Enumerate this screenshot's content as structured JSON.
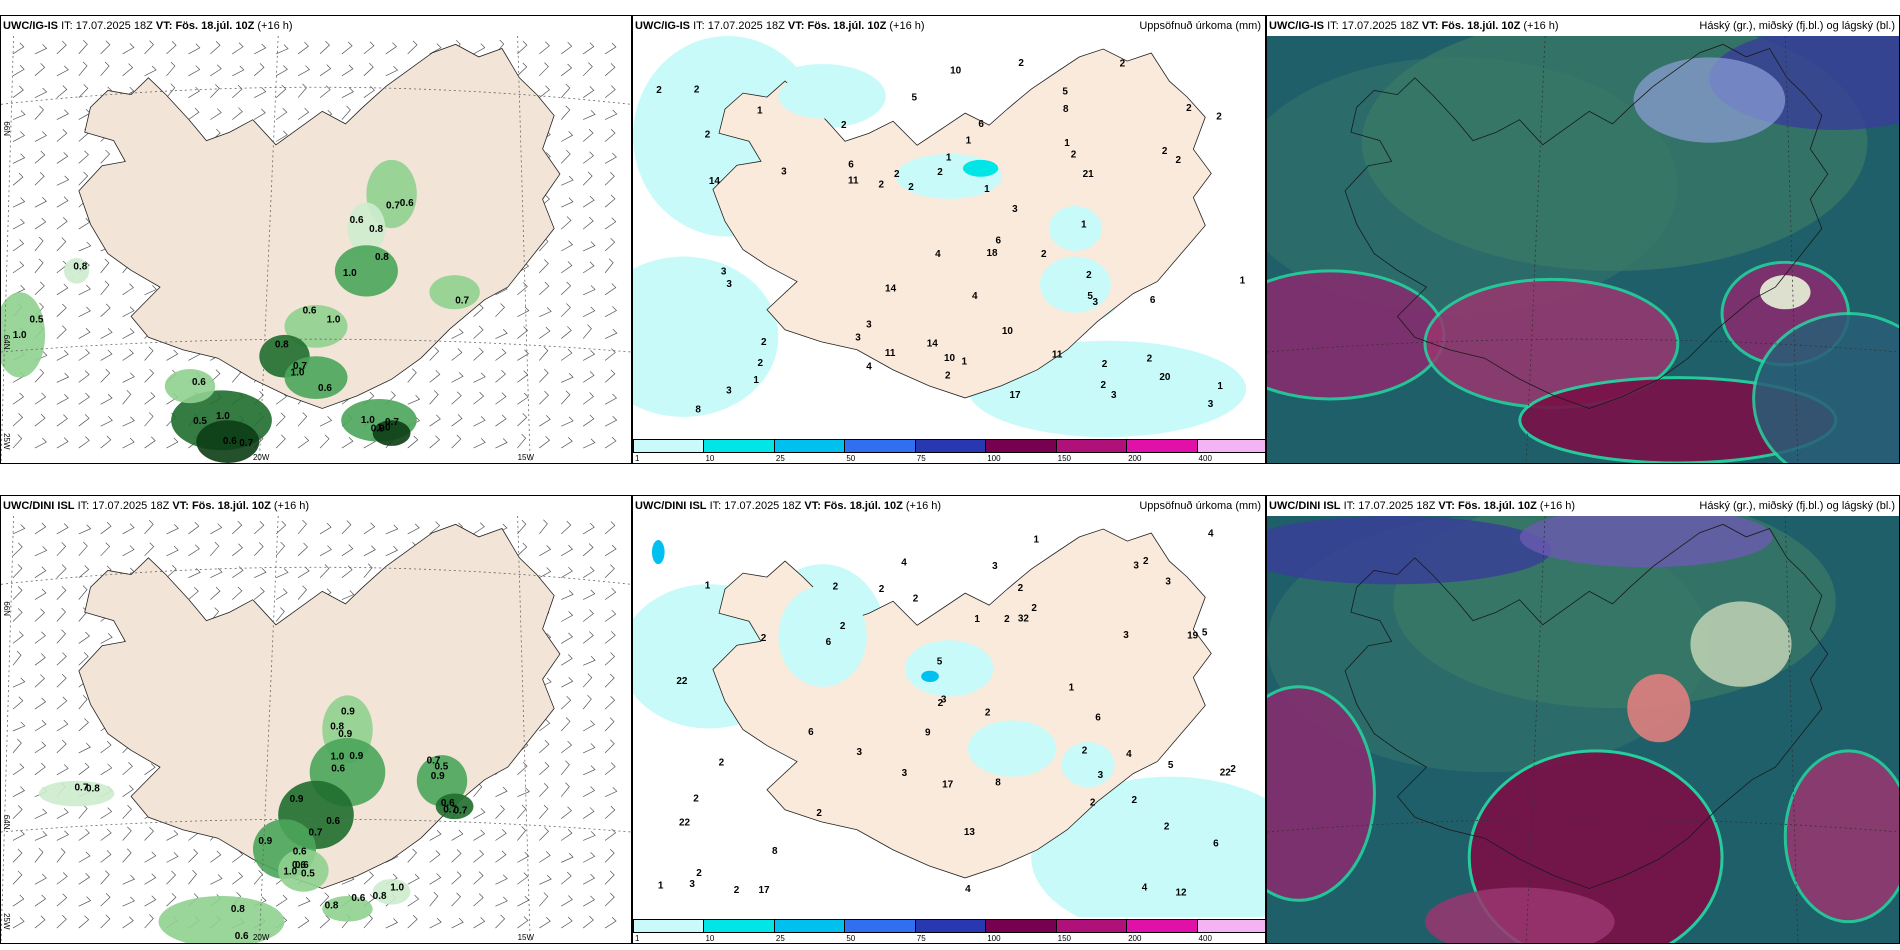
{
  "top": {
    "wind": {
      "model": "UWC/IG-IS",
      "it_label": "IT:",
      "it": "17.07.2025 18Z",
      "vt_label": "VT:",
      "vt": "Fös. 18.júl. 10Z",
      "lead": "(+16 h)"
    },
    "precip": {
      "model": "UWC/IG-IS",
      "it_label": "IT:",
      "it": "17.07.2025 18Z",
      "vt_label": "VT:",
      "vt": "Fös. 18.júl. 10Z",
      "lead": "(+16 h)",
      "right": "Uppsöfnuð úrkoma (mm)"
    },
    "cloud": {
      "model": "UWC/IG-IS",
      "it_label": "IT:",
      "it": "17.07.2025 18Z",
      "vt_label": "VT:",
      "vt": "Fös. 18.júl. 10Z",
      "lead": "(+16 h)",
      "right": "Háský (gr.), miðský (fj.bl.) og lágský (bl.)"
    }
  },
  "bottom": {
    "wind": {
      "model": "UWC/DINI ISL",
      "it_label": "IT:",
      "it": "17.07.2025 18Z",
      "vt_label": "VT:",
      "vt": "Fös. 18.júl. 10Z",
      "lead": "(+16 h)"
    },
    "precip": {
      "model": "UWC/DINI ISL",
      "it_label": "IT:",
      "it": "17.07.2025 18Z",
      "vt_label": "VT:",
      "vt": "Fös. 18.júl. 10Z",
      "lead": "(+16 h)",
      "right": "Uppsöfnuð úrkoma (mm)"
    },
    "cloud": {
      "model": "UWC/DINI ISL",
      "it_label": "IT:",
      "it": "17.07.2025 18Z",
      "vt_label": "VT:",
      "vt": "Fös. 18.júl. 10Z",
      "lead": "(+16 h)",
      "right": "Háský (gr.), miðský (fj.bl.) og lágský (bl.)"
    }
  },
  "grid_labels": {
    "lat66": "66N",
    "lat64": "64N",
    "lon25": "25W",
    "lon20": "20W",
    "lon15": "15W"
  },
  "precip_scale": {
    "ticks": [
      "1",
      "10",
      "25",
      "50",
      "75",
      "100",
      "150",
      "200",
      "400"
    ],
    "colors": [
      "#c8fafa",
      "#00e6e6",
      "#00c0f0",
      "#3070f0",
      "#2838b0",
      "#780050",
      "#b0107a",
      "#e010a8",
      "#f4b4f4"
    ]
  },
  "top_wind_values": [
    "0.6",
    "0.8",
    "0.8",
    "1.0",
    "0.8",
    "0.6",
    "0.5",
    "0.5",
    "0.6",
    "0.9",
    "0.7",
    "0.8",
    "0.6",
    "0.7",
    "0.7",
    "0.6",
    "1.0",
    "0.6",
    "0.7",
    "1.0",
    "1.0",
    "1.0",
    "0.7",
    "1.0",
    "1.0"
  ],
  "top_precip_values": [
    "3",
    "6",
    "6",
    "4",
    "5",
    "2",
    "2",
    "5",
    "2",
    "3",
    "3",
    "11",
    "11",
    "10",
    "11",
    "6",
    "5",
    "3",
    "4",
    "2",
    "2",
    "1",
    "2",
    "2",
    "3",
    "8",
    "2",
    "1",
    "2",
    "10",
    "20",
    "14",
    "6",
    "8",
    "18",
    "17",
    "10",
    "21",
    "14",
    "14",
    "3",
    "3",
    "2",
    "4",
    "1",
    "2",
    "1",
    "1",
    "1",
    "1",
    "2",
    "2",
    "2",
    "2",
    "2",
    "1",
    "2",
    "2",
    "3",
    "2",
    "1",
    "1",
    "2",
    "2",
    "3",
    "3",
    "2",
    "2"
  ],
  "bottom_wind_values": [
    "0.8",
    "0.6",
    "0.9",
    "0.6",
    "1.0",
    "0.9",
    "0.7",
    "0.7",
    "0.6",
    "0.8",
    "0.8",
    "0.9",
    "1.0",
    "0.6",
    "0.9",
    "0.6",
    "0.7",
    "0.7",
    "0.8",
    "0.8",
    "0.6",
    "1.0",
    "0.9",
    "0.9",
    "0.7",
    "0.6",
    "0.5",
    "0.5",
    "0.6"
  ],
  "bottom_precip_values": [
    "5",
    "12",
    "3",
    "4",
    "6",
    "9",
    "3",
    "3",
    "4",
    "6",
    "2",
    "2",
    "2",
    "4",
    "2",
    "2",
    "2",
    "8",
    "22",
    "19",
    "13",
    "32",
    "22",
    "17",
    "22",
    "3",
    "17",
    "8",
    "6",
    "3",
    "1",
    "2",
    "4",
    "2",
    "2",
    "1",
    "2",
    "2",
    "2",
    "2",
    "1",
    "3",
    "3",
    "2",
    "2",
    "2",
    "3",
    "2",
    "2",
    "3",
    "1",
    "2",
    "4",
    "5",
    "5",
    "6",
    "1",
    "2",
    "2"
  ]
}
